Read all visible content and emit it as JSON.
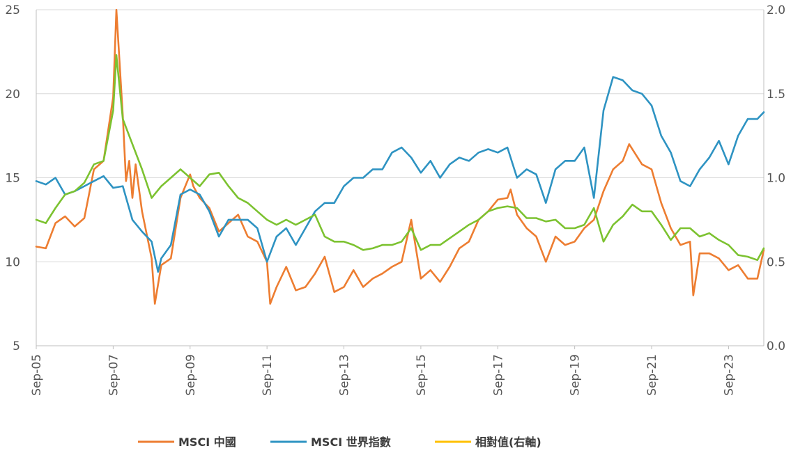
{
  "chart_data": {
    "type": "line",
    "x_start": "2005-09",
    "x_end": "2024-08",
    "x_tick_labels": [
      "Sep-05",
      "Sep-07",
      "Sep-09",
      "Sep-11",
      "Sep-13",
      "Sep-15",
      "Sep-17",
      "Sep-19",
      "Sep-21",
      "Sep-23"
    ],
    "y_left": {
      "ylim": [
        5,
        25
      ],
      "ticks": [
        "5",
        "10",
        "15",
        "20",
        "25"
      ]
    },
    "y_right": {
      "ylim": [
        0.0,
        2.0
      ],
      "ticks": [
        "0.0",
        "0.5",
        "1.0",
        "1.5",
        "2.0"
      ]
    },
    "grid": true,
    "legend_position": "bottom",
    "series": [
      {
        "name": "MSCI 中國",
        "axis": "left",
        "color": "#ED7D31",
        "points": [
          [
            "2005-09",
            10.9
          ],
          [
            "2005-12",
            10.8
          ],
          [
            "2006-03",
            12.3
          ],
          [
            "2006-06",
            12.7
          ],
          [
            "2006-09",
            12.1
          ],
          [
            "2006-12",
            12.6
          ],
          [
            "2007-03",
            15.5
          ],
          [
            "2007-06",
            16.0
          ],
          [
            "2007-09",
            19.8
          ],
          [
            "2007-10",
            25.0
          ],
          [
            "2007-12",
            18.7
          ],
          [
            "2008-01",
            14.8
          ],
          [
            "2008-02",
            16.0
          ],
          [
            "2008-03",
            13.8
          ],
          [
            "2008-04",
            15.8
          ],
          [
            "2008-06",
            13.0
          ],
          [
            "2008-09",
            10.2
          ],
          [
            "2008-10",
            7.5
          ],
          [
            "2008-12",
            9.8
          ],
          [
            "2009-03",
            10.2
          ],
          [
            "2009-06",
            13.8
          ],
          [
            "2009-09",
            15.2
          ],
          [
            "2009-10",
            14.5
          ],
          [
            "2009-12",
            13.8
          ],
          [
            "2010-03",
            13.2
          ],
          [
            "2010-06",
            11.8
          ],
          [
            "2010-09",
            12.3
          ],
          [
            "2010-12",
            12.8
          ],
          [
            "2011-03",
            11.5
          ],
          [
            "2011-06",
            11.2
          ],
          [
            "2011-09",
            10.0
          ],
          [
            "2011-10",
            7.5
          ],
          [
            "2011-12",
            8.5
          ],
          [
            "2012-03",
            9.7
          ],
          [
            "2012-06",
            8.3
          ],
          [
            "2012-09",
            8.5
          ],
          [
            "2012-12",
            9.3
          ],
          [
            "2013-03",
            10.3
          ],
          [
            "2013-06",
            8.2
          ],
          [
            "2013-09",
            8.5
          ],
          [
            "2013-12",
            9.5
          ],
          [
            "2014-03",
            8.5
          ],
          [
            "2014-06",
            9.0
          ],
          [
            "2014-09",
            9.3
          ],
          [
            "2014-12",
            9.7
          ],
          [
            "2015-03",
            10.0
          ],
          [
            "2015-06",
            12.5
          ],
          [
            "2015-09",
            9.0
          ],
          [
            "2015-12",
            9.5
          ],
          [
            "2016-03",
            8.8
          ],
          [
            "2016-06",
            9.7
          ],
          [
            "2016-09",
            10.8
          ],
          [
            "2016-12",
            11.2
          ],
          [
            "2017-03",
            12.5
          ],
          [
            "2017-06",
            13.0
          ],
          [
            "2017-09",
            13.7
          ],
          [
            "2017-12",
            13.8
          ],
          [
            "2018-01",
            14.3
          ],
          [
            "2018-03",
            12.8
          ],
          [
            "2018-06",
            12.0
          ],
          [
            "2018-09",
            11.5
          ],
          [
            "2018-12",
            10.0
          ],
          [
            "2019-03",
            11.5
          ],
          [
            "2019-06",
            11.0
          ],
          [
            "2019-09",
            11.2
          ],
          [
            "2019-12",
            12.0
          ],
          [
            "2020-03",
            12.5
          ],
          [
            "2020-06",
            14.2
          ],
          [
            "2020-09",
            15.5
          ],
          [
            "2020-12",
            16.0
          ],
          [
            "2021-02",
            17.0
          ],
          [
            "2021-06",
            15.8
          ],
          [
            "2021-09",
            15.5
          ],
          [
            "2021-12",
            13.5
          ],
          [
            "2022-03",
            12.0
          ],
          [
            "2022-06",
            11.0
          ],
          [
            "2022-09",
            11.2
          ],
          [
            "2022-10",
            8.0
          ],
          [
            "2022-12",
            10.5
          ],
          [
            "2023-03",
            10.5
          ],
          [
            "2023-06",
            10.2
          ],
          [
            "2023-09",
            9.5
          ],
          [
            "2023-12",
            9.8
          ],
          [
            "2024-03",
            9.0
          ],
          [
            "2024-06",
            9.0
          ],
          [
            "2024-08",
            10.7
          ]
        ]
      },
      {
        "name": "MSCI 世界指數",
        "axis": "left",
        "color": "#2E93C2",
        "points": [
          [
            "2005-09",
            14.8
          ],
          [
            "2005-12",
            14.6
          ],
          [
            "2006-03",
            15.0
          ],
          [
            "2006-06",
            14.0
          ],
          [
            "2006-09",
            14.2
          ],
          [
            "2006-12",
            14.5
          ],
          [
            "2007-03",
            14.8
          ],
          [
            "2007-06",
            15.1
          ],
          [
            "2007-09",
            14.4
          ],
          [
            "2007-12",
            14.5
          ],
          [
            "2008-03",
            12.5
          ],
          [
            "2008-06",
            11.8
          ],
          [
            "2008-09",
            11.2
          ],
          [
            "2008-11",
            9.4
          ],
          [
            "2008-12",
            10.2
          ],
          [
            "2009-03",
            11.0
          ],
          [
            "2009-06",
            14.0
          ],
          [
            "2009-09",
            14.3
          ],
          [
            "2009-12",
            14.0
          ],
          [
            "2010-03",
            13.0
          ],
          [
            "2010-06",
            11.5
          ],
          [
            "2010-09",
            12.5
          ],
          [
            "2010-12",
            12.5
          ],
          [
            "2011-03",
            12.5
          ],
          [
            "2011-06",
            12.0
          ],
          [
            "2011-09",
            10.0
          ],
          [
            "2011-12",
            11.5
          ],
          [
            "2012-03",
            12.0
          ],
          [
            "2012-06",
            11.0
          ],
          [
            "2012-09",
            12.0
          ],
          [
            "2012-12",
            13.0
          ],
          [
            "2013-03",
            13.5
          ],
          [
            "2013-06",
            13.5
          ],
          [
            "2013-09",
            14.5
          ],
          [
            "2013-12",
            15.0
          ],
          [
            "2014-03",
            15.0
          ],
          [
            "2014-06",
            15.5
          ],
          [
            "2014-09",
            15.5
          ],
          [
            "2014-12",
            16.5
          ],
          [
            "2015-03",
            16.8
          ],
          [
            "2015-06",
            16.2
          ],
          [
            "2015-09",
            15.3
          ],
          [
            "2015-12",
            16.0
          ],
          [
            "2016-03",
            15.0
          ],
          [
            "2016-06",
            15.8
          ],
          [
            "2016-09",
            16.2
          ],
          [
            "2016-12",
            16.0
          ],
          [
            "2017-03",
            16.5
          ],
          [
            "2017-06",
            16.7
          ],
          [
            "2017-09",
            16.5
          ],
          [
            "2017-12",
            16.8
          ],
          [
            "2018-03",
            15.0
          ],
          [
            "2018-06",
            15.5
          ],
          [
            "2018-09",
            15.2
          ],
          [
            "2018-12",
            13.5
          ],
          [
            "2019-03",
            15.5
          ],
          [
            "2019-06",
            16.0
          ],
          [
            "2019-09",
            16.0
          ],
          [
            "2019-12",
            16.8
          ],
          [
            "2020-03",
            13.8
          ],
          [
            "2020-06",
            19.0
          ],
          [
            "2020-09",
            21.0
          ],
          [
            "2020-12",
            20.8
          ],
          [
            "2021-03",
            20.2
          ],
          [
            "2021-06",
            20.0
          ],
          [
            "2021-09",
            19.3
          ],
          [
            "2021-12",
            17.5
          ],
          [
            "2022-03",
            16.5
          ],
          [
            "2022-06",
            14.8
          ],
          [
            "2022-09",
            14.5
          ],
          [
            "2022-12",
            15.5
          ],
          [
            "2023-03",
            16.2
          ],
          [
            "2023-06",
            17.2
          ],
          [
            "2023-09",
            15.8
          ],
          [
            "2023-12",
            17.5
          ],
          [
            "2024-03",
            18.5
          ],
          [
            "2024-06",
            18.5
          ],
          [
            "2024-08",
            18.9
          ]
        ]
      },
      {
        "name": "相對值(右軸)",
        "axis": "right",
        "color": "#7CC230",
        "points": [
          [
            "2005-09",
            0.75
          ],
          [
            "2005-12",
            0.73
          ],
          [
            "2006-03",
            0.82
          ],
          [
            "2006-06",
            0.9
          ],
          [
            "2006-09",
            0.92
          ],
          [
            "2006-12",
            0.97
          ],
          [
            "2007-03",
            1.08
          ],
          [
            "2007-06",
            1.1
          ],
          [
            "2007-09",
            1.4
          ],
          [
            "2007-10",
            1.73
          ],
          [
            "2007-12",
            1.35
          ],
          [
            "2008-03",
            1.2
          ],
          [
            "2008-06",
            1.05
          ],
          [
            "2008-09",
            0.88
          ],
          [
            "2008-12",
            0.95
          ],
          [
            "2009-03",
            1.0
          ],
          [
            "2009-06",
            1.05
          ],
          [
            "2009-09",
            1.0
          ],
          [
            "2009-12",
            0.95
          ],
          [
            "2010-03",
            1.02
          ],
          [
            "2010-06",
            1.03
          ],
          [
            "2010-09",
            0.95
          ],
          [
            "2010-12",
            0.88
          ],
          [
            "2011-03",
            0.85
          ],
          [
            "2011-06",
            0.8
          ],
          [
            "2011-09",
            0.75
          ],
          [
            "2011-12",
            0.72
          ],
          [
            "2012-03",
            0.75
          ],
          [
            "2012-06",
            0.72
          ],
          [
            "2012-09",
            0.75
          ],
          [
            "2012-12",
            0.78
          ],
          [
            "2013-03",
            0.65
          ],
          [
            "2013-06",
            0.62
          ],
          [
            "2013-09",
            0.62
          ],
          [
            "2013-12",
            0.6
          ],
          [
            "2014-03",
            0.57
          ],
          [
            "2014-06",
            0.58
          ],
          [
            "2014-09",
            0.6
          ],
          [
            "2014-12",
            0.6
          ],
          [
            "2015-03",
            0.62
          ],
          [
            "2015-06",
            0.7
          ],
          [
            "2015-09",
            0.57
          ],
          [
            "2015-12",
            0.6
          ],
          [
            "2016-03",
            0.6
          ],
          [
            "2016-06",
            0.64
          ],
          [
            "2016-09",
            0.68
          ],
          [
            "2016-12",
            0.72
          ],
          [
            "2017-03",
            0.75
          ],
          [
            "2017-06",
            0.8
          ],
          [
            "2017-09",
            0.82
          ],
          [
            "2017-12",
            0.83
          ],
          [
            "2018-03",
            0.82
          ],
          [
            "2018-06",
            0.76
          ],
          [
            "2018-09",
            0.76
          ],
          [
            "2018-12",
            0.74
          ],
          [
            "2019-03",
            0.75
          ],
          [
            "2019-06",
            0.7
          ],
          [
            "2019-09",
            0.7
          ],
          [
            "2019-12",
            0.72
          ],
          [
            "2020-03",
            0.82
          ],
          [
            "2020-06",
            0.62
          ],
          [
            "2020-09",
            0.72
          ],
          [
            "2020-12",
            0.77
          ],
          [
            "2021-03",
            0.84
          ],
          [
            "2021-06",
            0.8
          ],
          [
            "2021-09",
            0.8
          ],
          [
            "2021-12",
            0.72
          ],
          [
            "2022-03",
            0.63
          ],
          [
            "2022-06",
            0.7
          ],
          [
            "2022-09",
            0.7
          ],
          [
            "2022-12",
            0.65
          ],
          [
            "2023-03",
            0.67
          ],
          [
            "2023-06",
            0.63
          ],
          [
            "2023-09",
            0.6
          ],
          [
            "2023-12",
            0.54
          ],
          [
            "2024-03",
            0.53
          ],
          [
            "2024-06",
            0.51
          ],
          [
            "2024-08",
            0.58
          ]
        ]
      }
    ]
  }
}
